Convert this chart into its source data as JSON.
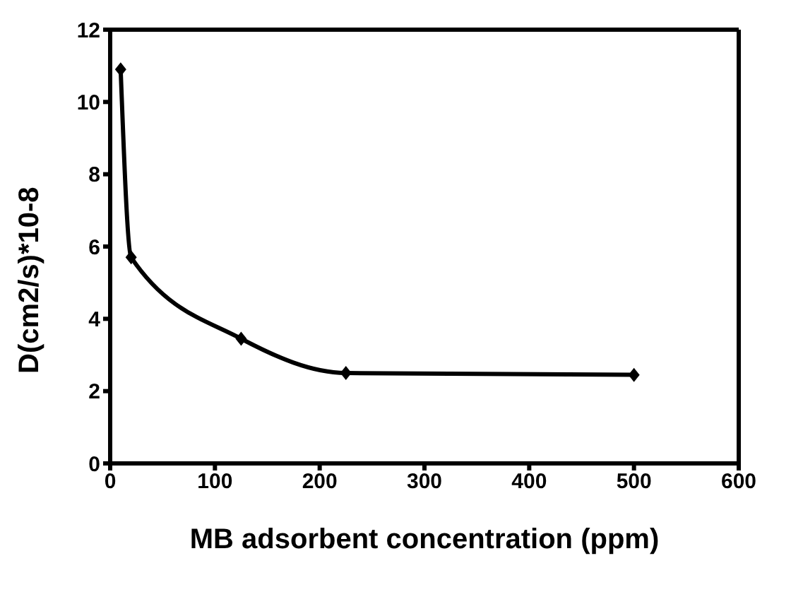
{
  "chart_data": {
    "type": "line",
    "xlabel": "MB adsorbent concentration (ppm)",
    "ylabel": "D(cm2/s)*10-8",
    "x": [
      10,
      20,
      125,
      225,
      500
    ],
    "series": [
      {
        "color": "#000000",
        "values": [
          10.9,
          5.7,
          3.45,
          2.5,
          2.45
        ]
      }
    ],
    "xlim": [
      0,
      600
    ],
    "xticks": [
      0,
      100,
      200,
      300,
      400,
      500,
      600
    ],
    "ylim": [
      0,
      12
    ],
    "yticks": [
      0,
      2,
      4,
      6,
      8,
      10,
      12
    ],
    "grid": false,
    "legend": false,
    "marker": "diamond",
    "line_style": "solid"
  }
}
